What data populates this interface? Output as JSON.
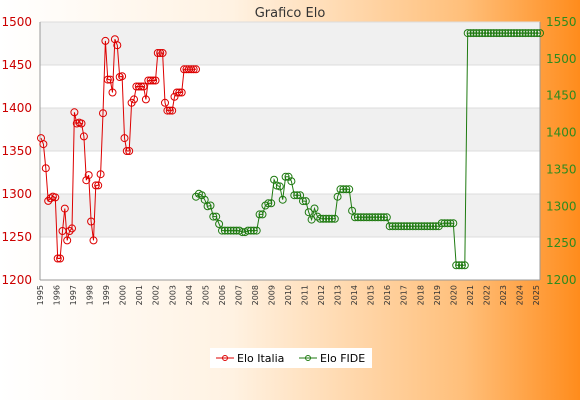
{
  "chart_data": {
    "type": "line",
    "title": "Grafico Elo",
    "grid": true,
    "legend_placement": "bottom-center",
    "y_left": {
      "ylim": [
        1200,
        1500
      ],
      "ticks": [
        1200,
        1250,
        1300,
        1350,
        1400,
        1450,
        1500
      ],
      "color": "#cc0000"
    },
    "y_right": {
      "ylim": [
        1200,
        1550
      ],
      "ticks": [
        1200,
        1250,
        1300,
        1350,
        1400,
        1450,
        1500,
        1550
      ],
      "color": "#2e8b1e"
    },
    "x_tick_labels": [
      "1995",
      "1996",
      "1997",
      "1998",
      "1999",
      "2000",
      "2001",
      "2002",
      "2003",
      "2004",
      "2005",
      "2006",
      "2007",
      "2008",
      "2009",
      "2010",
      "2011",
      "2012",
      "2013",
      "2014",
      "2015",
      "2016",
      "2017",
      "2018",
      "2019",
      "2020",
      "2021",
      "2022",
      "2023",
      "2024",
      "2025"
    ],
    "series": [
      {
        "name": "Elo Italia",
        "axis": "left",
        "color": "#dd0000",
        "values": [
          1365,
          1358,
          1330,
          1292,
          1295,
          1297,
          1296,
          1225,
          1225,
          1257,
          1283,
          1246,
          1257,
          1260,
          1395,
          1382,
          1383,
          1382,
          1367,
          1316,
          1322,
          1268,
          1246,
          1310,
          1310,
          1323,
          1394,
          1478,
          1433,
          1433,
          1418,
          1480,
          1473,
          1436,
          1437,
          1365,
          1350,
          1350,
          1406,
          1410,
          1425,
          1425,
          1425,
          1425,
          1410,
          1432,
          1432,
          1432,
          1432,
          1464,
          1464,
          1464,
          1406,
          1397,
          1397,
          1397,
          1413,
          1418,
          1418,
          1418,
          1445,
          1445,
          1445,
          1445,
          1445,
          1445
        ]
      },
      {
        "name": "Elo FIDE",
        "axis": "right",
        "color": "#1e7a10",
        "values": [
          1313,
          1317,
          1315,
          1309,
          1300,
          1301,
          1286,
          1286,
          1276,
          1267,
          1267,
          1267,
          1267,
          1267,
          1267,
          1267,
          1265,
          1265,
          1267,
          1267,
          1267,
          1267,
          1289,
          1289,
          1301,
          1304,
          1304,
          1336,
          1328,
          1327,
          1309,
          1340,
          1340,
          1334,
          1315,
          1315,
          1315,
          1307,
          1307,
          1292,
          1282,
          1297,
          1286,
          1283,
          1283,
          1283,
          1283,
          1283,
          1283,
          1313,
          1323,
          1323,
          1323,
          1323,
          1294,
          1285,
          1285,
          1285,
          1285,
          1285,
          1285,
          1285,
          1285,
          1285,
          1285,
          1285,
          1285,
          1273,
          1273,
          1273,
          1273,
          1273,
          1273,
          1273,
          1273,
          1273,
          1273,
          1273,
          1273,
          1273,
          1273,
          1273,
          1273,
          1273,
          1273,
          1277,
          1277,
          1277,
          1277,
          1277,
          1220,
          1220,
          1220,
          1220,
          1535,
          1535,
          1535,
          1535,
          1535,
          1535,
          1535,
          1535,
          1535,
          1535,
          1535,
          1535,
          1535,
          1535,
          1535,
          1535,
          1535,
          1535,
          1535,
          1535,
          1535,
          1535,
          1535,
          1535,
          1535,
          1535
        ]
      }
    ]
  }
}
